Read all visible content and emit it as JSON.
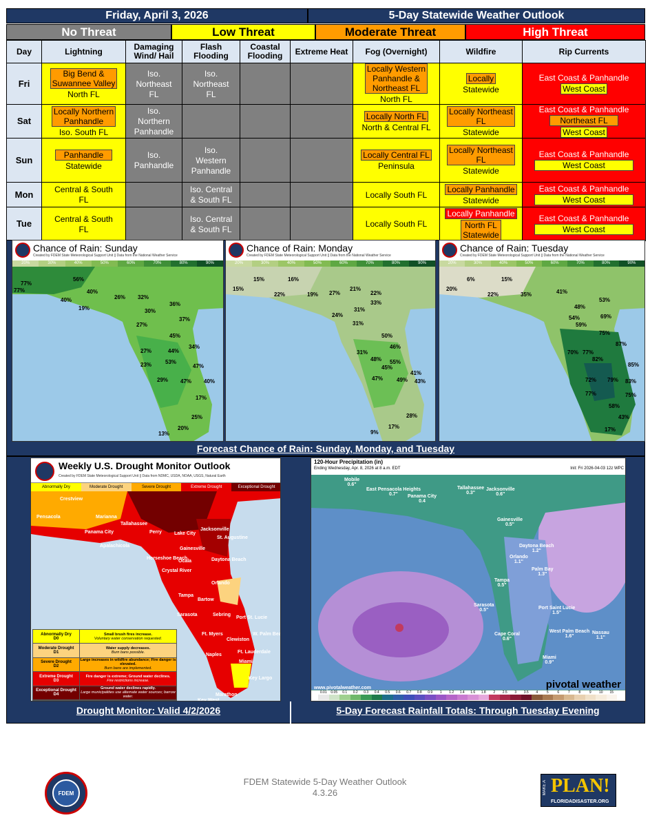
{
  "header": {
    "date": "Friday, April 3, 2026",
    "title": "5-Day Statewide Weather Outlook"
  },
  "legend": {
    "no": "No Threat",
    "low": "Low Threat",
    "moderate": "Moderate Threat",
    "high": "High Threat"
  },
  "columns": [
    "Day",
    "Lightning",
    "Damaging Wind/ Hail",
    "Flash Flooding",
    "Coastal Flooding",
    "Extreme Heat",
    "Fog (Overnight)",
    "Wildfire",
    "Rip Currents"
  ],
  "rows": [
    {
      "day": "Fri",
      "lightning": [
        "Big Bend &",
        "Suwannee Valley",
        "North FL"
      ],
      "wind": [
        "Iso.",
        "Northeast",
        "FL"
      ],
      "flood": [
        "Iso.",
        "Northeast",
        "FL"
      ],
      "fog": [
        "Locally Western",
        "Panhandle &",
        "Northeast FL",
        "North FL"
      ],
      "wildfire": [
        "Locally",
        "Statewide"
      ],
      "rip": [
        "East Coast & Panhandle",
        "West Coast"
      ]
    },
    {
      "day": "Sat",
      "lightning": [
        "Locally Northern",
        "Panhandle",
        "Iso. South FL"
      ],
      "wind": [
        "Iso.",
        "Northern",
        "Panhandle"
      ],
      "fog": [
        "Locally North FL",
        "North & Central FL"
      ],
      "wildfire": [
        "Locally Northeast",
        "FL",
        "Statewide"
      ],
      "rip": [
        "East Coast & Panhandle",
        "Northeast FL",
        "West Coast"
      ]
    },
    {
      "day": "Sun",
      "lightning": [
        "Panhandle",
        "Statewide"
      ],
      "wind": [
        "Iso.",
        "Panhandle"
      ],
      "flood": [
        "Iso.",
        "Western",
        "Panhandle"
      ],
      "fog": [
        "Locally Central FL",
        "Peninsula"
      ],
      "wildfire": [
        "Locally Northeast",
        "FL",
        "Statewide"
      ],
      "rip": [
        "East Coast & Panhandle",
        "West Coast"
      ]
    },
    {
      "day": "Mon",
      "lightning": [
        "Central & South",
        "FL"
      ],
      "flood": [
        "Iso. Central",
        "& South FL"
      ],
      "fog": [
        "Locally South FL"
      ],
      "wildfire": [
        "Locally Panhandle",
        "Statewide"
      ],
      "rip": [
        "East Coast & Panhandle",
        "West Coast"
      ]
    },
    {
      "day": "Tue",
      "lightning": [
        "Central & South",
        "FL"
      ],
      "flood": [
        "Iso. Central",
        "& South FL"
      ],
      "fog": [
        "Locally South FL"
      ],
      "wildfire": [
        "Locally Panhandle",
        "North FL",
        "Statewide"
      ],
      "rip": [
        "East Coast & Panhandle",
        "West Coast"
      ]
    }
  ],
  "rain_maps": {
    "credit": "Created by FDEM State Meteorological Support Unit || Data from the National Weather Service",
    "scale": [
      "20%",
      "30%",
      "40%",
      "50%",
      "60%",
      "70%",
      "80%",
      "90%"
    ],
    "sunday": {
      "title": "Chance of Rain: Sunday",
      "labels": [
        "77%",
        "56%",
        "77%",
        "40%",
        "40%",
        "26%",
        "32%",
        "36%",
        "19%",
        "30%",
        "37%",
        "27%",
        "45%",
        "27%",
        "44%",
        "34%",
        "23%",
        "53%",
        "47%",
        "29%",
        "47%",
        "40%",
        "17%",
        "25%",
        "20%",
        "13%"
      ]
    },
    "monday": {
      "title": "Chance of Rain: Monday",
      "labels": [
        "15%",
        "16%",
        "15%",
        "22%",
        "19%",
        "27%",
        "21%",
        "22%",
        "33%",
        "31%",
        "24%",
        "31%",
        "50%",
        "46%",
        "31%",
        "48%",
        "55%",
        "45%",
        "47%",
        "49%",
        "41%",
        "43%",
        "28%",
        "17%",
        "9%"
      ]
    },
    "tuesday": {
      "title": "Chance of Rain: Tuesday",
      "labels": [
        "6%",
        "15%",
        "20%",
        "22%",
        "35%",
        "41%",
        "53%",
        "48%",
        "54%",
        "69%",
        "59%",
        "75%",
        "87%",
        "70%",
        "77%",
        "82%",
        "85%",
        "72%",
        "79%",
        "83%",
        "77%",
        "75%",
        "58%",
        "43%",
        "17%"
      ]
    },
    "caption": "Forecast Chance of Rain: Sunday, Monday, and Tuesday"
  },
  "drought": {
    "title": "Weekly U.S. Drought Monitor Outlook",
    "credit": "Created by FDEM State Meteorological Support Unit || Data from NDMC, USDA, NOAA, USGS, Natural Earth",
    "cats": [
      "Abnormally Dry",
      "Moderate Drought",
      "Severe Drought",
      "Extreme Drought",
      "Exceptional Drought"
    ],
    "cat_colors": [
      "#ffff00",
      "#fcd37f",
      "#ffaa00",
      "#e60000",
      "#730000"
    ],
    "cities": [
      "Crestview",
      "Pensacola",
      "Marianna",
      "Tallahassee",
      "Panama City",
      "Apalachicola",
      "Perry",
      "Lake City",
      "Jacksonville",
      "St. Augustine",
      "Gainesville",
      "Horseshoe Beach",
      "Ocala",
      "Daytona Beach",
      "Crystal River",
      "Orlando",
      "Tampa",
      "Bartow",
      "Sebring",
      "Sarasota",
      "Port St. Lucie",
      "Ft. Myers",
      "Clewiston",
      "W. Palm Beach",
      "Naples",
      "Ft. Lauderdale",
      "Miami",
      "Key Largo",
      "Marathon",
      "Key West"
    ],
    "key": [
      {
        "name": "Abnormally Dry",
        "code": "D0",
        "desc": "Small brush fires increase.",
        "sub": "Voluntary water conservation requested."
      },
      {
        "name": "Moderate Drought",
        "code": "D1",
        "desc": "Water supply decreases.",
        "sub": "Burn bans possible."
      },
      {
        "name": "Severe Drought",
        "code": "D2",
        "desc": "Large increases in wildfire abundance; Fire danger is elevated.",
        "sub": "Burn bans are implemented."
      },
      {
        "name": "Extreme Drought",
        "code": "D3",
        "desc": "Fire danger is extreme; Ground water declines.",
        "sub": "Fire restrictions increase."
      },
      {
        "name": "Exceptional Drought",
        "code": "D4",
        "desc": "Ground water declines rapidly.",
        "sub": "Large municipalities use alternate water sources; barrow water."
      }
    ],
    "caption": "Drought Monitor: Valid 4/2/2026"
  },
  "precip": {
    "title": "120-Hour Precipitation (in)",
    "subtitle": "Ending Wednesday, Apr. 8, 2026 at 8 a.m. EDT",
    "init": "Init: Fri 2026-04-03 12z WPC",
    "labels": [
      [
        "Mobile",
        "0.6\""
      ],
      [
        "East Pensacola Heights",
        "0.7\""
      ],
      [
        "Tallahassee",
        "0.3\""
      ],
      [
        "Panama City",
        "0.4"
      ],
      [
        "Jacksonville",
        "0.6\""
      ],
      [
        "Gainesville",
        "0.5\""
      ],
      [
        "Daytona Beach",
        "1.2\""
      ],
      [
        "Orlando",
        "1.1\""
      ],
      [
        "Palm Bay",
        "1.3\""
      ],
      [
        "Tampa",
        "0.5\""
      ],
      [
        "Sarasota",
        "0.5\""
      ],
      [
        "Port Saint Lucie",
        "1.5\""
      ],
      [
        "West Palm Beach",
        "1.6\""
      ],
      [
        "Cape Coral",
        "0.6\""
      ],
      [
        "Nassau",
        "1.1\""
      ],
      [
        "Miami",
        "0.9\""
      ]
    ],
    "scale": [
      "0.01",
      "0.05",
      "0.1",
      "0.2",
      "0.3",
      "0.4",
      "0.5",
      "0.6",
      "0.7",
      "0.8",
      "0.9",
      "1",
      "1.2",
      "1.4",
      "1.6",
      "1.8",
      "2",
      "2.5",
      "3",
      "3.5",
      "4",
      "5",
      "6",
      "7",
      "8",
      "9",
      "10",
      "15"
    ],
    "site": "www.pivotalweather.com",
    "brand": "pivotal weather",
    "caption": "5-Day Forecast Rainfall Totals: Through Tuesday Evening"
  },
  "footer": {
    "line1": "FDEM Statewide 5-Day Weather Outlook",
    "line2": "4.3.26",
    "plan_top": "MAKE A",
    "plan": "PLAN!",
    "plan_url": "FLORIDADISASTER.ORG",
    "fdem": "FDEM"
  }
}
